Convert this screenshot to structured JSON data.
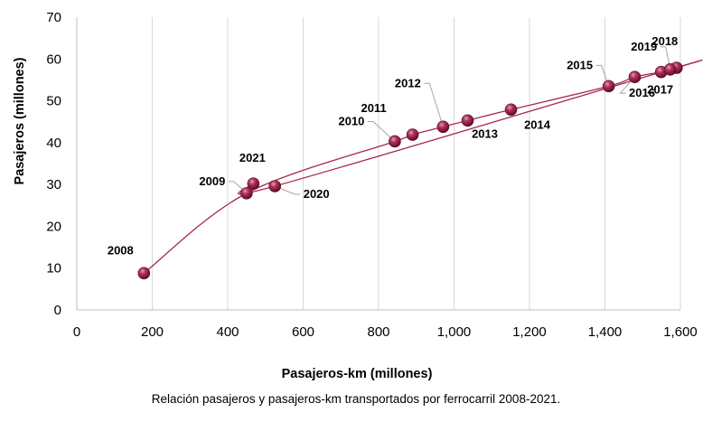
{
  "chart_data": {
    "type": "scatter",
    "title": "",
    "xlabel": "Pasajeros-km (millones)",
    "ylabel": "Pasajeros (millones)",
    "xlim": [
      0,
      1600
    ],
    "ylim": [
      0,
      70
    ],
    "xticks": [
      0,
      200,
      400,
      600,
      800,
      1000,
      1200,
      1400,
      1600
    ],
    "xtick_labels": [
      "0",
      "200",
      "400",
      "600",
      "800",
      "1,000",
      "1,200",
      "1,400",
      "1,600"
    ],
    "yticks": [
      0,
      10,
      20,
      30,
      40,
      50,
      60,
      70
    ],
    "ytick_labels": [
      "0",
      "10",
      "20",
      "30",
      "40",
      "50",
      "60",
      "70"
    ],
    "grid": "vertical",
    "connected": "smooth line in chronological order",
    "points": [
      {
        "label": "2008",
        "x": 178,
        "y": 8.8
      },
      {
        "label": "2009",
        "x": 450,
        "y": 27.9
      },
      {
        "label": "2010",
        "x": 843,
        "y": 40.3
      },
      {
        "label": "2011",
        "x": 890,
        "y": 41.9
      },
      {
        "label": "2012",
        "x": 971,
        "y": 43.8
      },
      {
        "label": "2013",
        "x": 1036,
        "y": 45.3
      },
      {
        "label": "2014",
        "x": 1151,
        "y": 47.9
      },
      {
        "label": "2015",
        "x": 1410,
        "y": 53.5
      },
      {
        "label": "2016",
        "x": 1479,
        "y": 55.7
      },
      {
        "label": "2017",
        "x": 1549,
        "y": 56.9
      },
      {
        "label": "2018",
        "x": 1590,
        "y": 57.9
      },
      {
        "label": "2019",
        "x": 1573,
        "y": 57.5
      },
      {
        "label": "2020",
        "x": 525,
        "y": 29.6
      },
      {
        "label": "2021",
        "x": 468,
        "y": 30.2
      }
    ],
    "colors": {
      "marker": "#8b1e3f",
      "line": "#a52a4a",
      "grid": "#d9d9d9"
    }
  },
  "caption": "Relación pasajeros y pasajeros-km transportados por ferrocarril 2008-2021."
}
